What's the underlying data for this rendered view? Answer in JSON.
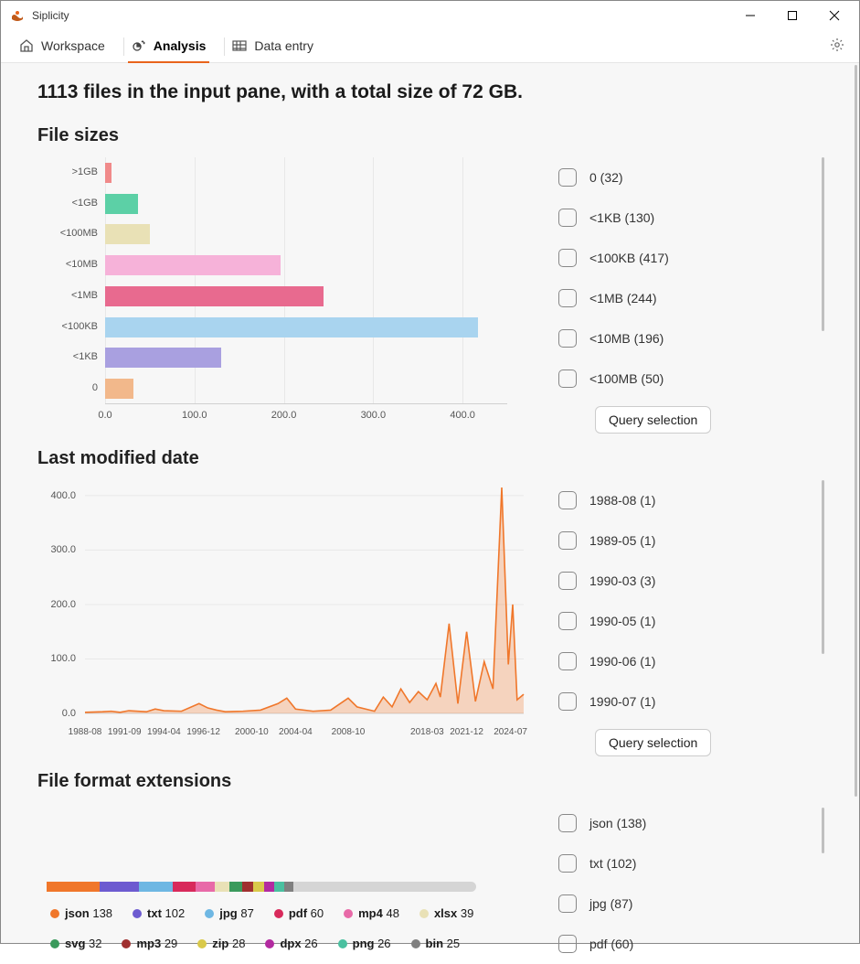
{
  "app": {
    "title": "Siplicity"
  },
  "tabs": {
    "workspace": "Workspace",
    "analysis": "Analysis",
    "dataentry": "Data entry",
    "active": "analysis"
  },
  "summary": "1113 files in the input pane, with a total size of 72 GB.",
  "query_button_label": "Query selection",
  "filesizes": {
    "title": "File sizes",
    "chart": {
      "type": "horizontal-bar",
      "categories": [
        ">1GB",
        "<1GB",
        "<100MB",
        "<10MB",
        "<1MB",
        "<100KB",
        "<1KB",
        "0"
      ],
      "values": [
        7,
        37,
        50,
        196,
        244,
        417,
        130,
        32
      ],
      "bar_colors": [
        "#f08a8a",
        "#5cd0a6",
        "#e9e1b6",
        "#f6b2d9",
        "#e86a8f",
        "#a9d4ef",
        "#a9a0e0",
        "#f2b88b"
      ],
      "xlim": [
        0,
        450
      ],
      "xtick_step": 100,
      "xtick_labels": [
        "0.0",
        "100.0",
        "200.0",
        "300.0",
        "400.0"
      ],
      "plot_bg": "#f7f7f7",
      "grid_color": "#e8e8e8",
      "axis_color": "#d0d0d0",
      "label_fontsize": 11
    },
    "checks": [
      {
        "label": "0",
        "count": 32
      },
      {
        "label": "<1KB",
        "count": 130
      },
      {
        "label": "<100KB",
        "count": 417
      },
      {
        "label": "<1MB",
        "count": 244
      },
      {
        "label": "<10MB",
        "count": 196
      },
      {
        "label": "<100MB",
        "count": 50
      }
    ]
  },
  "lastmod": {
    "title": "Last modified date",
    "chart": {
      "type": "area",
      "ylim": [
        0,
        420
      ],
      "ytick_step": 100,
      "ytick_labels": [
        "0.0",
        "100.0",
        "200.0",
        "300.0",
        "400.0"
      ],
      "xtick_labels": [
        "1988-08",
        "1991-09",
        "1994-04",
        "1996-12",
        "2000-10",
        "2004-04",
        "2008-10",
        "2018-03",
        "2021-12",
        "2024-07"
      ],
      "xtick_positions": [
        0.0,
        0.09,
        0.18,
        0.27,
        0.38,
        0.48,
        0.6,
        0.78,
        0.87,
        0.97
      ],
      "points": [
        [
          0.0,
          2
        ],
        [
          0.04,
          3
        ],
        [
          0.06,
          4
        ],
        [
          0.08,
          2
        ],
        [
          0.1,
          5
        ],
        [
          0.14,
          3
        ],
        [
          0.16,
          8
        ],
        [
          0.18,
          5
        ],
        [
          0.22,
          4
        ],
        [
          0.26,
          18
        ],
        [
          0.28,
          10
        ],
        [
          0.3,
          6
        ],
        [
          0.32,
          3
        ],
        [
          0.36,
          4
        ],
        [
          0.4,
          6
        ],
        [
          0.44,
          18
        ],
        [
          0.46,
          28
        ],
        [
          0.48,
          8
        ],
        [
          0.52,
          4
        ],
        [
          0.56,
          6
        ],
        [
          0.6,
          28
        ],
        [
          0.62,
          12
        ],
        [
          0.66,
          4
        ],
        [
          0.68,
          30
        ],
        [
          0.7,
          12
        ],
        [
          0.72,
          45
        ],
        [
          0.74,
          20
        ],
        [
          0.76,
          40
        ],
        [
          0.78,
          25
        ],
        [
          0.8,
          55
        ],
        [
          0.81,
          30
        ],
        [
          0.83,
          165
        ],
        [
          0.85,
          18
        ],
        [
          0.87,
          150
        ],
        [
          0.89,
          22
        ],
        [
          0.91,
          95
        ],
        [
          0.93,
          45
        ],
        [
          0.95,
          415
        ],
        [
          0.965,
          90
        ],
        [
          0.975,
          200
        ],
        [
          0.985,
          25
        ],
        [
          1.0,
          35
        ]
      ],
      "line_color": "#f0772b",
      "fill_color": "rgba(240,119,43,0.28)",
      "line_width": 1.6,
      "grid_color": "#e8e8e8",
      "axis_color": "#d0d0d0"
    },
    "checks": [
      {
        "label": "1988-08",
        "count": 1
      },
      {
        "label": "1989-05",
        "count": 1
      },
      {
        "label": "1990-03",
        "count": 3
      },
      {
        "label": "1990-05",
        "count": 1
      },
      {
        "label": "1990-06",
        "count": 1
      },
      {
        "label": "1990-07",
        "count": 1
      }
    ]
  },
  "formats": {
    "title": "File format extensions",
    "segments": [
      {
        "name": "json",
        "value": 138,
        "color": "#f0772b"
      },
      {
        "name": "txt",
        "value": 102,
        "color": "#6d5bd0"
      },
      {
        "name": "jpg",
        "value": 87,
        "color": "#6eb7e3"
      },
      {
        "name": "pdf",
        "value": 60,
        "color": "#d82a5b"
      },
      {
        "name": "mp4",
        "value": 48,
        "color": "#e86aa8"
      },
      {
        "name": "xlsx",
        "value": 39,
        "color": "#e9e1b6"
      },
      {
        "name": "svg",
        "value": 32,
        "color": "#3a9a5c"
      },
      {
        "name": "mp3",
        "value": 29,
        "color": "#a03030"
      },
      {
        "name": "zip",
        "value": 28,
        "color": "#d9c94a"
      },
      {
        "name": "dpx",
        "value": 26,
        "color": "#b22aa0"
      },
      {
        "name": "png",
        "value": 26,
        "color": "#4ac0a0"
      },
      {
        "name": "bin",
        "value": 25,
        "color": "#808080"
      }
    ],
    "total_for_bar": 1113,
    "checks": [
      {
        "label": "json",
        "count": 138
      },
      {
        "label": "txt",
        "count": 102
      },
      {
        "label": "jpg",
        "count": 87
      },
      {
        "label": "pdf",
        "count": 60
      }
    ]
  }
}
